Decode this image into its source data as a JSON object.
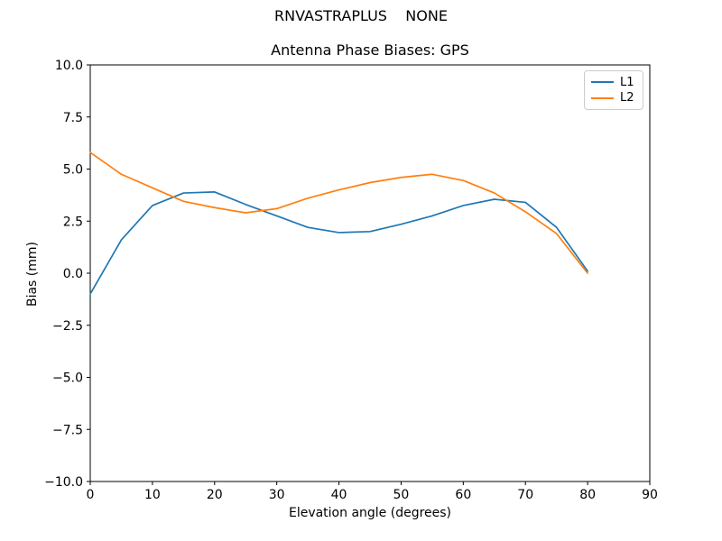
{
  "suptitle": "RNVASTRAPLUS    NONE",
  "chart_data": {
    "type": "line",
    "title": "Antenna Phase Biases: GPS",
    "xlabel": "Elevation angle (degrees)",
    "ylabel": "Bias (mm)",
    "xlim": [
      0,
      90
    ],
    "ylim": [
      -10,
      10
    ],
    "grid": false,
    "x_ticks": [
      0,
      10,
      20,
      30,
      40,
      50,
      60,
      70,
      80,
      90
    ],
    "x_tick_labels": [
      "0",
      "10",
      "20",
      "30",
      "40",
      "50",
      "60",
      "70",
      "80",
      "90"
    ],
    "y_ticks": [
      10,
      7.5,
      5,
      2.5,
      0,
      -2.5,
      -5,
      -7.5,
      -10
    ],
    "y_tick_labels": [
      "10.0",
      "7.5",
      "5.0",
      "2.5",
      "0.0",
      "−2.5",
      "−5.0",
      "−7.5",
      "−10.0"
    ],
    "x": [
      0,
      5,
      10,
      15,
      20,
      25,
      30,
      35,
      40,
      45,
      50,
      55,
      60,
      65,
      70,
      75,
      80
    ],
    "series": [
      {
        "name": "L1",
        "color": "#1f77b4",
        "values": [
          -1.0,
          1.6,
          3.25,
          3.85,
          3.9,
          3.3,
          2.75,
          2.2,
          1.95,
          2.0,
          2.35,
          2.75,
          3.25,
          3.55,
          3.4,
          2.2,
          0.1
        ]
      },
      {
        "name": "L2",
        "color": "#ff7f0e",
        "values": [
          5.8,
          4.75,
          4.1,
          3.45,
          3.15,
          2.9,
          3.1,
          3.6,
          4.0,
          4.35,
          4.6,
          4.75,
          4.45,
          3.85,
          2.95,
          1.9,
          0.0
        ]
      }
    ],
    "legend": {
      "position": "upper right",
      "entries": [
        "L1",
        "L2"
      ]
    }
  }
}
